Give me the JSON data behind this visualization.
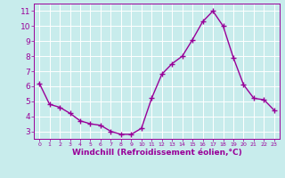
{
  "x": [
    0,
    1,
    2,
    3,
    4,
    5,
    6,
    7,
    8,
    9,
    10,
    11,
    12,
    13,
    14,
    15,
    16,
    17,
    18,
    19,
    20,
    21,
    22,
    23
  ],
  "y": [
    6.2,
    4.8,
    4.6,
    4.2,
    3.7,
    3.5,
    3.4,
    3.0,
    2.8,
    2.8,
    3.2,
    5.2,
    6.8,
    7.5,
    8.0,
    9.1,
    10.3,
    11.0,
    10.0,
    7.9,
    6.1,
    5.2,
    5.1,
    4.4
  ],
  "line_color": "#990099",
  "marker": "+",
  "marker_size": 4,
  "line_width": 1.0,
  "background_color": "#c8ecec",
  "grid_color": "#ffffff",
  "xlabel": "Windchill (Refroidissement éolien,°C)",
  "xlabel_color": "#990099",
  "tick_color": "#990099",
  "ylim": [
    2.5,
    11.5
  ],
  "xlim": [
    -0.5,
    23.5
  ],
  "yticks": [
    3,
    4,
    5,
    6,
    7,
    8,
    9,
    10,
    11
  ],
  "xticks": [
    0,
    1,
    2,
    3,
    4,
    5,
    6,
    7,
    8,
    9,
    10,
    11,
    12,
    13,
    14,
    15,
    16,
    17,
    18,
    19,
    20,
    21,
    22,
    23
  ],
  "ytick_fontsize": 6.5,
  "xtick_fontsize": 4.5,
  "xlabel_fontsize": 6.5
}
